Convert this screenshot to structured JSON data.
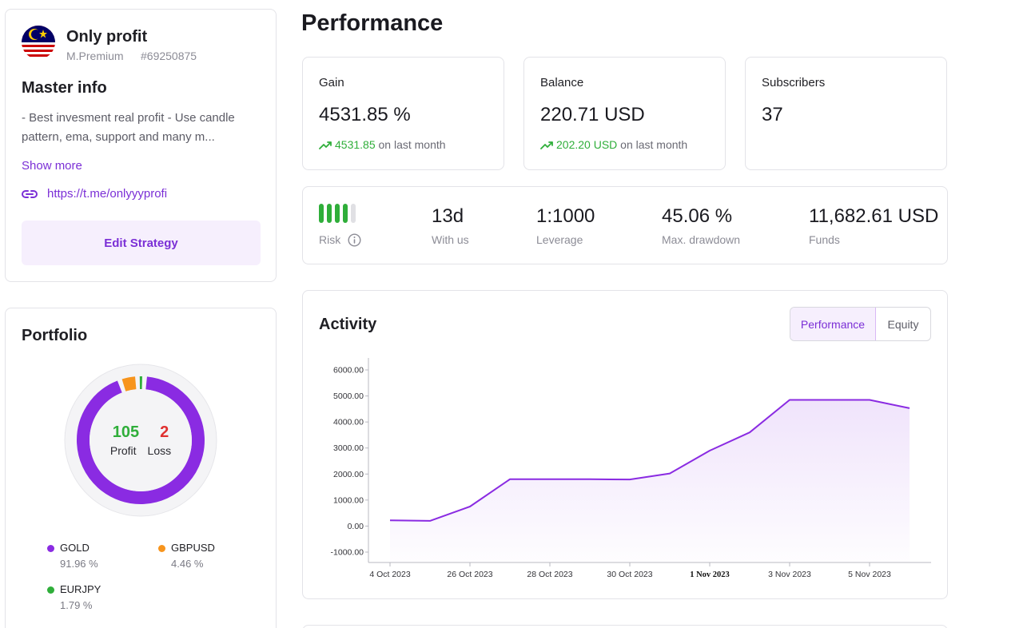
{
  "master": {
    "name": "Only profit",
    "plan": "M.Premium",
    "account_id": "#69250875",
    "info_title": "Master info",
    "description": "- Best invesment real profit - Use candle pattern, ema, support and many m...",
    "show_more": "Show more",
    "link": "https://t.me/onlyyyprofi",
    "edit_button": "Edit Strategy"
  },
  "portfolio": {
    "title": "Portfolio",
    "profit_count": "105",
    "profit_label": "Profit",
    "loss_count": "2",
    "loss_label": "Loss",
    "items": [
      {
        "name": "GOLD",
        "pct": "91.96 %",
        "value": 91.96,
        "color": "#8a2be2"
      },
      {
        "name": "GBPUSD",
        "pct": "4.46 %",
        "value": 4.46,
        "color": "#f7941d"
      },
      {
        "name": "EURJPY",
        "pct": "1.79 %",
        "value": 1.79,
        "color": "#2fae3a"
      }
    ]
  },
  "page": {
    "title": "Performance"
  },
  "stats": {
    "gain": {
      "label": "Gain",
      "value": "4531.85 %",
      "change": "4531.85",
      "suffix": "on last month"
    },
    "balance": {
      "label": "Balance",
      "value": "220.71 USD",
      "change": "202.20 USD",
      "suffix": "on last month"
    },
    "subscribers": {
      "label": "Subscribers",
      "value": "37"
    }
  },
  "info": {
    "risk_label": "Risk",
    "risk_level": 4,
    "risk_max": 5,
    "with_us": {
      "value": "13d",
      "label": "With us"
    },
    "leverage": {
      "value": "1:1000",
      "label": "Leverage"
    },
    "drawdown": {
      "value": "45.06 %",
      "label": "Max. drawdown"
    },
    "funds": {
      "value": "11,682.61 USD",
      "label": "Funds"
    }
  },
  "activity": {
    "title": "Activity",
    "tabs": [
      "Performance",
      "Equity"
    ],
    "active_tab": "Performance"
  },
  "colors": {
    "accent": "#7b2fd6",
    "up": "#2fae3a",
    "loss": "#e0302f"
  },
  "chart_data": {
    "type": "area",
    "x": [
      "4 Oct 2023",
      "25 Oct 2023",
      "26 Oct 2023",
      "27 Oct 2023",
      "28 Oct 2023",
      "29 Oct 2023",
      "30 Oct 2023",
      "31 Oct 2023",
      "1 Nov 2023",
      "2 Nov 2023",
      "3 Nov 2023",
      "4 Nov 2023",
      "5 Nov 2023",
      "6 Nov 2023"
    ],
    "y": [
      220,
      200,
      750,
      1800,
      1800,
      1800,
      1790,
      2020,
      2900,
      3600,
      4850,
      4850,
      4850,
      4530
    ],
    "tick_labels": [
      "4 Oct 2023",
      "26 Oct 2023",
      "28 Oct 2023",
      "30 Oct 2023",
      "1 Nov 2023",
      "3 Nov 2023",
      "5 Nov 2023"
    ],
    "y_ticks": [
      "6000.00",
      "5000.00",
      "4000.00",
      "3000.00",
      "2000.00",
      "1000.00",
      "0.00",
      "-1000.00"
    ],
    "ylim": [
      -1000,
      6000
    ],
    "line_color": "#8a2be2",
    "grid": false
  }
}
